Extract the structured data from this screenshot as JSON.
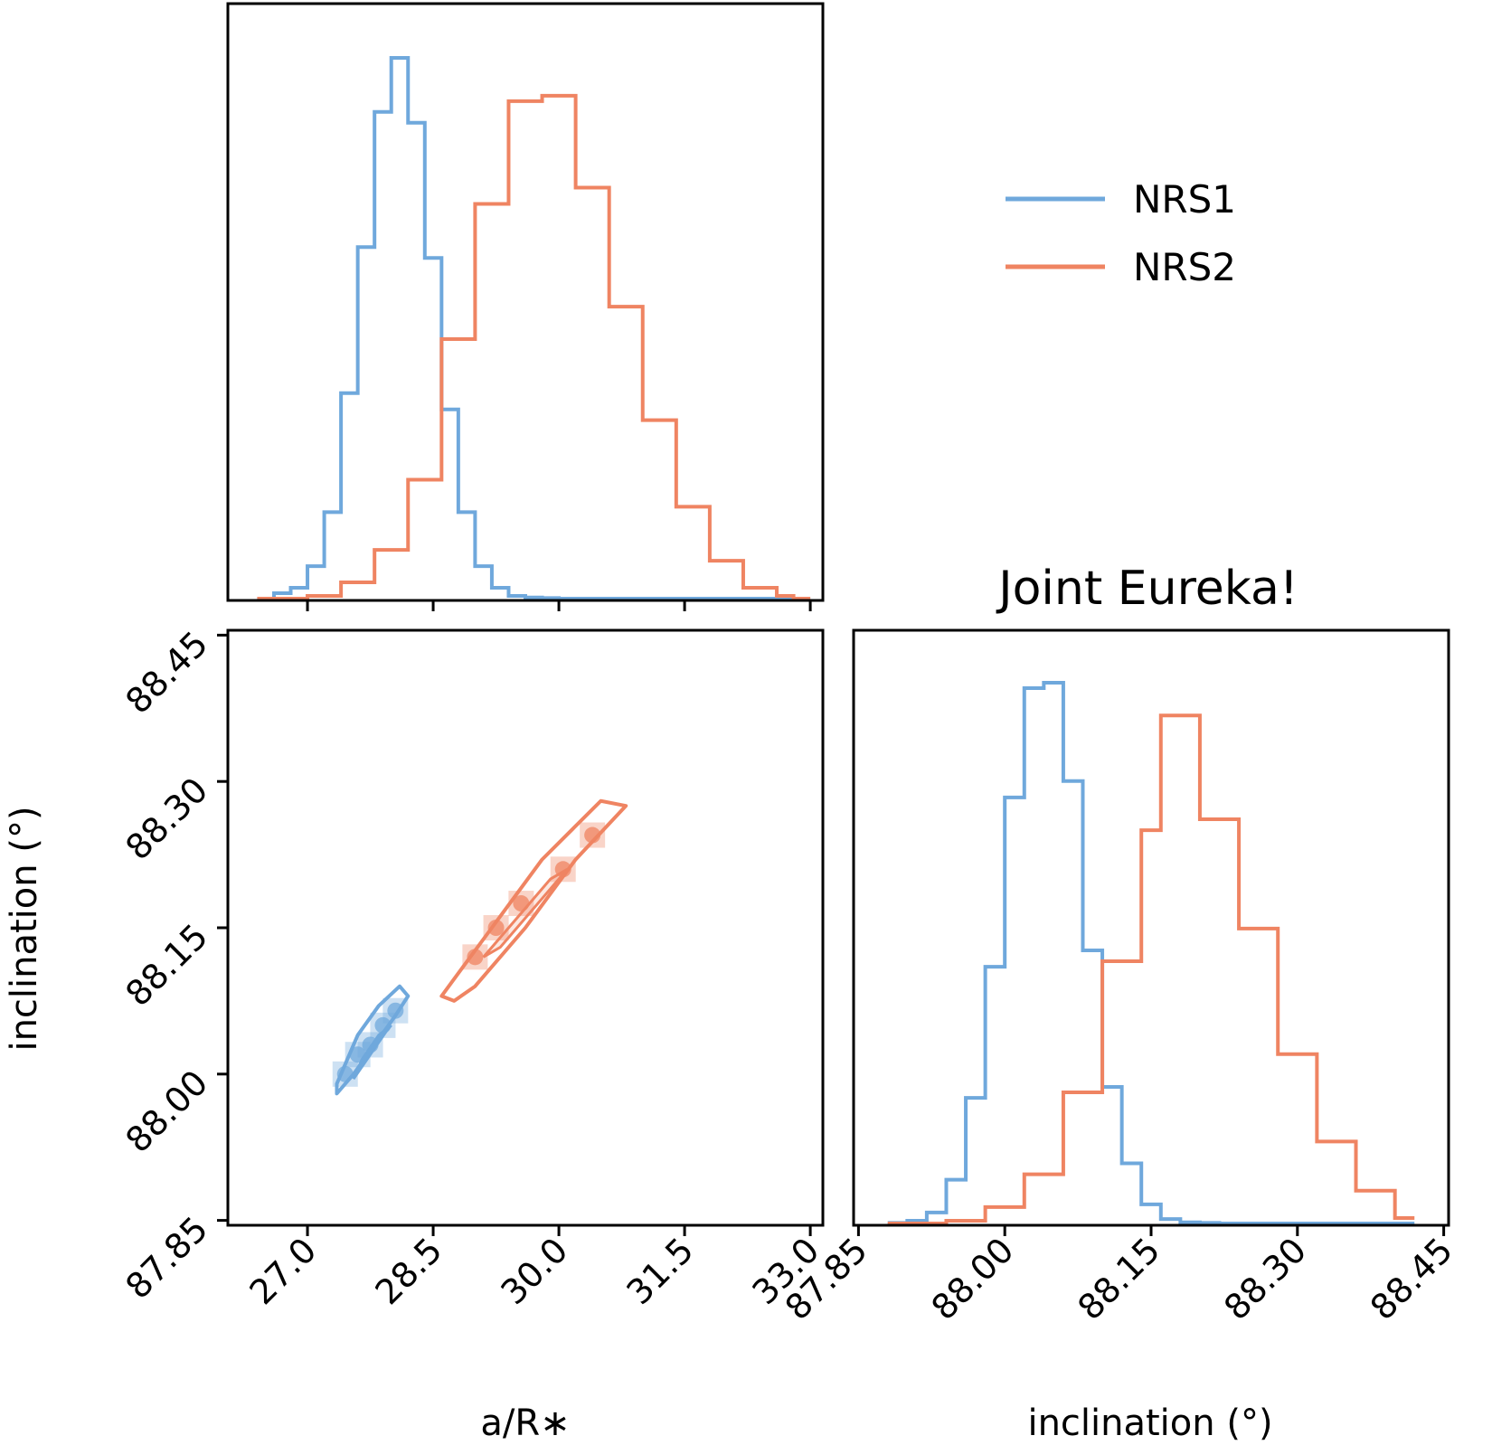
{
  "colors": {
    "nrs1": "#6fa8dc",
    "nrs2": "#ef8462"
  },
  "chart_data": {
    "type": "corner",
    "title": "Joint Eureka!",
    "legend": [
      {
        "label": "NRS1",
        "color": "#6fa8dc"
      },
      {
        "label": "NRS2",
        "color": "#ef8462"
      }
    ],
    "legend_placement": "top-right",
    "params": [
      {
        "name": "a/R∗",
        "range": [
          26.05,
          33.15
        ],
        "ticks": [
          "27.0",
          "28.5",
          "30.0",
          "31.5",
          "33.0"
        ],
        "tick_values": [
          27.0,
          28.5,
          30.0,
          31.5,
          33.0
        ]
      },
      {
        "name": "inclination (°)",
        "range": [
          87.845,
          88.455
        ],
        "ticks": [
          "87.85",
          "88.00",
          "88.15",
          "88.30",
          "88.45"
        ],
        "tick_values": [
          87.85,
          88.0,
          88.15,
          88.3,
          88.45
        ]
      }
    ],
    "hist_aR": {
      "bin_edges": [
        26.4,
        26.6,
        26.8,
        27.0,
        27.2,
        27.4,
        27.6,
        27.8,
        28.0,
        28.2,
        28.4,
        28.6,
        28.8,
        29.0,
        29.2,
        29.4,
        29.6,
        29.8,
        30.0,
        30.2,
        30.4,
        30.6,
        30.8,
        31.0,
        31.2,
        31.4,
        31.6,
        31.8,
        32.0,
        32.2,
        32.4,
        32.6,
        32.8,
        33.0
      ],
      "series": [
        {
          "name": "NRS1",
          "values": [
            0.0,
            0.01,
            0.02,
            0.06,
            0.16,
            0.38,
            0.65,
            0.9,
            1.0,
            0.88,
            0.63,
            0.35,
            0.16,
            0.06,
            0.02,
            0.005,
            0.002,
            0.001,
            0.0,
            0.0,
            0.0,
            0.0,
            0.0,
            0.0,
            0.0,
            0.0,
            0.0,
            0.0,
            0.0,
            0.0,
            0.0,
            0.0,
            0.0
          ]
        },
        {
          "name": "NRS2",
          "values": [
            0.0,
            0.0,
            0.0,
            0.005,
            0.005,
            0.03,
            0.03,
            0.09,
            0.09,
            0.22,
            0.22,
            0.48,
            0.48,
            0.73,
            0.73,
            0.92,
            0.92,
            0.93,
            0.93,
            0.76,
            0.76,
            0.54,
            0.54,
            0.33,
            0.33,
            0.17,
            0.17,
            0.07,
            0.07,
            0.02,
            0.02,
            0.005,
            0.0
          ]
        }
      ]
    },
    "hist_inc": {
      "bin_edges": [
        87.88,
        87.9,
        87.92,
        87.94,
        87.96,
        87.98,
        88.0,
        88.02,
        88.04,
        88.06,
        88.08,
        88.1,
        88.12,
        88.14,
        88.16,
        88.18,
        88.2,
        88.22,
        88.24,
        88.26,
        88.28,
        88.3,
        88.32,
        88.34,
        88.36,
        88.38,
        88.4,
        88.42
      ],
      "series": [
        {
          "name": "NRS1",
          "values": [
            0.001,
            0.005,
            0.02,
            0.08,
            0.23,
            0.47,
            0.78,
            0.98,
            0.99,
            0.81,
            0.5,
            0.25,
            0.11,
            0.035,
            0.008,
            0.002,
            0.001,
            0.0,
            0.0,
            0.0,
            0.0,
            0.0,
            0.0,
            0.0,
            0.0,
            0.0,
            0.0
          ]
        },
        {
          "name": "NRS2",
          "values": [
            0.0,
            0.0,
            0.0,
            0.005,
            0.005,
            0.03,
            0.03,
            0.09,
            0.09,
            0.24,
            0.24,
            0.48,
            0.48,
            0.72,
            0.93,
            0.93,
            0.74,
            0.74,
            0.54,
            0.54,
            0.31,
            0.31,
            0.15,
            0.15,
            0.06,
            0.06,
            0.01
          ]
        }
      ]
    },
    "scatter_2d": {
      "xlabel": "a/R∗",
      "ylabel": "inclination (°)",
      "series": [
        {
          "name": "NRS1",
          "contour": [
            [
              27.35,
              87.98
            ],
            [
              27.55,
              88.0
            ],
            [
              27.8,
              88.03
            ],
            [
              28.05,
              88.06
            ],
            [
              28.2,
              88.08
            ],
            [
              28.1,
              88.09
            ],
            [
              27.85,
              88.07
            ],
            [
              27.6,
              88.04
            ],
            [
              27.4,
              88.0
            ],
            [
              27.35,
              87.99
            ]
          ],
          "inner_contour": [
            [
              27.55,
              87.995
            ],
            [
              27.75,
              88.02
            ],
            [
              27.95,
              88.045
            ],
            [
              28.0,
              88.05
            ],
            [
              27.85,
              88.04
            ],
            [
              27.65,
              88.015
            ],
            [
              27.55,
              87.995
            ]
          ],
          "density": [
            [
              27.45,
              88.0
            ],
            [
              27.6,
              88.02
            ],
            [
              27.75,
              88.03
            ],
            [
              27.9,
              88.05
            ],
            [
              28.05,
              88.065
            ]
          ]
        },
        {
          "name": "NRS2",
          "contour": [
            [
              28.6,
              88.08
            ],
            [
              29.2,
              88.15
            ],
            [
              29.8,
              88.22
            ],
            [
              30.5,
              88.28
            ],
            [
              30.8,
              88.275
            ],
            [
              30.2,
              88.22
            ],
            [
              29.6,
              88.15
            ],
            [
              29.0,
              88.09
            ],
            [
              28.75,
              88.075
            ],
            [
              28.6,
              88.08
            ]
          ],
          "inner_contour": [
            [
              29.1,
              88.12
            ],
            [
              29.5,
              88.16
            ],
            [
              29.9,
              88.2
            ],
            [
              30.1,
              88.21
            ],
            [
              29.7,
              88.17
            ],
            [
              29.3,
              88.13
            ],
            [
              29.1,
              88.12
            ]
          ],
          "density": [
            [
              29.0,
              88.12
            ],
            [
              29.25,
              88.15
            ],
            [
              29.55,
              88.175
            ],
            [
              30.05,
              88.21
            ],
            [
              30.4,
              88.245
            ]
          ]
        }
      ]
    }
  }
}
